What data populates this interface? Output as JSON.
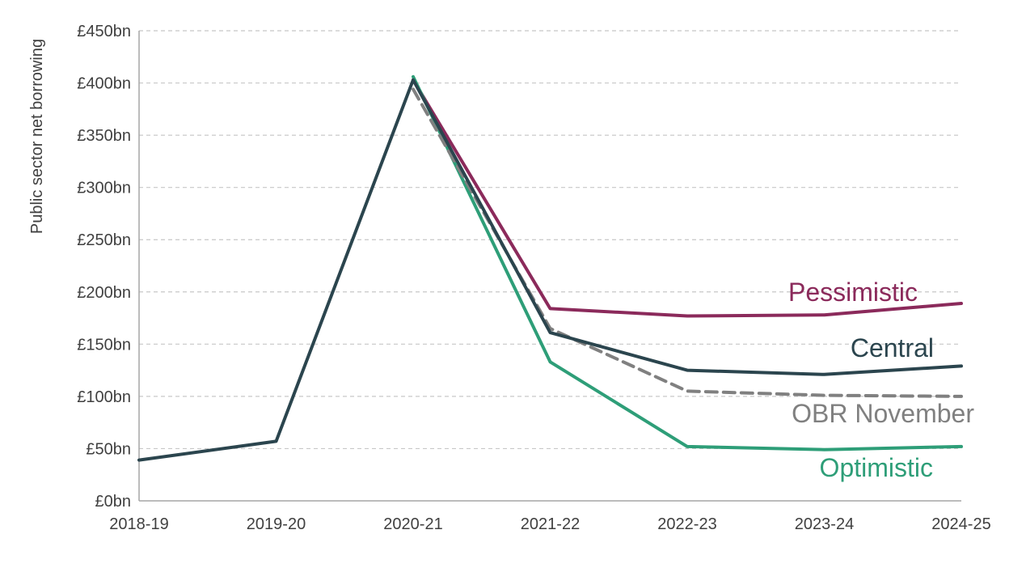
{
  "chart_data": {
    "type": "line",
    "title": "",
    "xlabel": "",
    "ylabel": "Public sector net borrowing",
    "categories": [
      "2018-19",
      "2019-20",
      "2020-21",
      "2021-22",
      "2022-23",
      "2023-24",
      "2024-25"
    ],
    "ylim": [
      0,
      450
    ],
    "yticks": [
      0,
      50,
      100,
      150,
      200,
      250,
      300,
      350,
      400,
      450
    ],
    "ytick_labels": [
      "£0bn",
      "£50bn",
      "£100bn",
      "£150bn",
      "£200bn",
      "£250bn",
      "£300bn",
      "£350bn",
      "£400bn",
      "£450bn"
    ],
    "grid": "horizontal dashed",
    "legend": "inline labels at right",
    "series": [
      {
        "name": "Pessimistic",
        "color": "#8b2a5b",
        "dash": false,
        "values": [
          null,
          null,
          403,
          184,
          177,
          178,
          189
        ]
      },
      {
        "name": "Optimistic",
        "color": "#2e9e78",
        "dash": false,
        "values": [
          null,
          null,
          406,
          133,
          52,
          49,
          52
        ]
      },
      {
        "name": "OBR November",
        "color": "#808080",
        "dash": true,
        "values": [
          null,
          null,
          394,
          165,
          105,
          101,
          100
        ]
      },
      {
        "name": "Central",
        "color": "#2b454e",
        "dash": false,
        "values": [
          39,
          57,
          403,
          161,
          125,
          121,
          129
        ]
      }
    ]
  }
}
